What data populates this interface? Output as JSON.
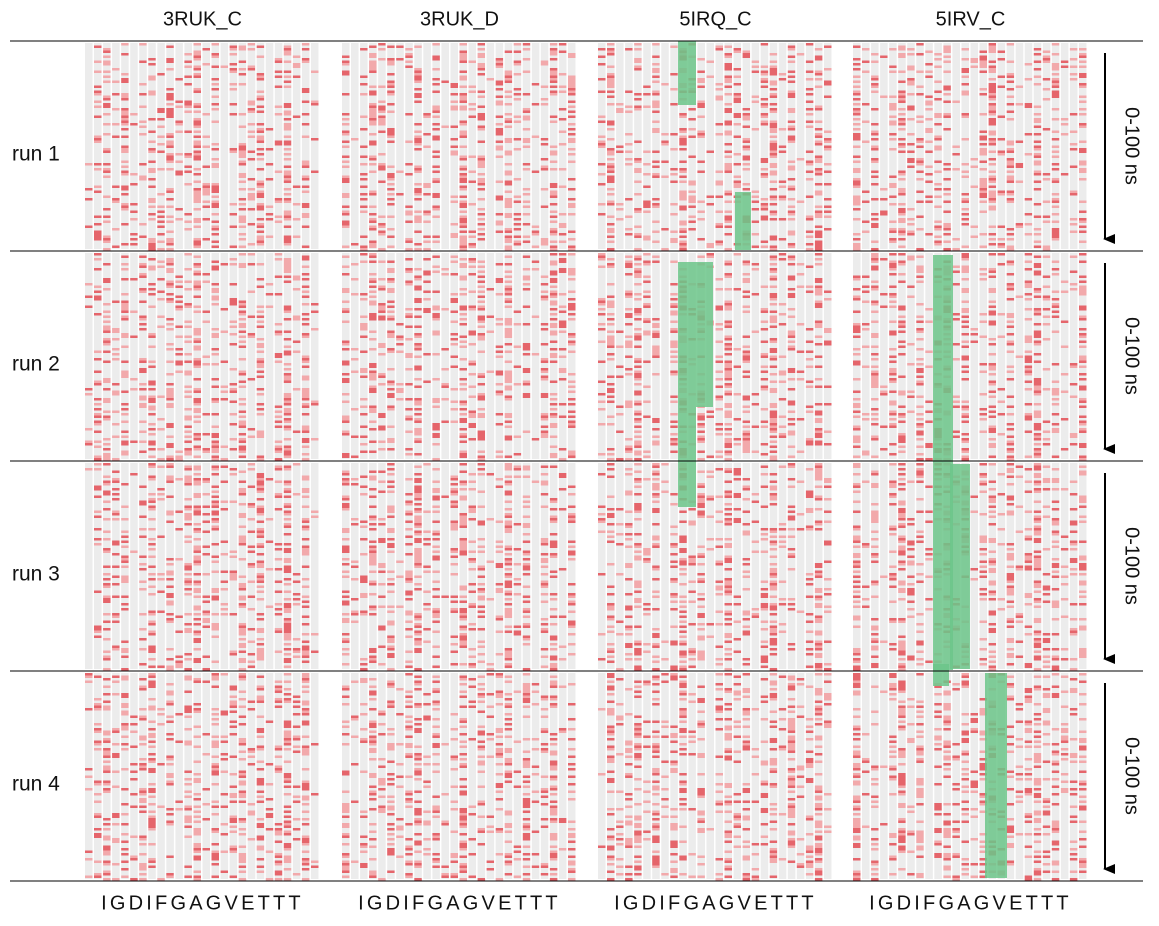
{
  "columns": [
    "3RUK_C",
    "3RUK_D",
    "5IRQ_C",
    "5IRV_C"
  ],
  "rows": [
    "run 1",
    "run 2",
    "run 3",
    "run 4"
  ],
  "time_labels": [
    "0-100 ns",
    "0-100 ns",
    "0-100 ns",
    "0-100 ns"
  ],
  "sequences": [
    "IGDIFGAGVETTT",
    "IGDIFGAGVETTT",
    "IGDIFGAGVETTT",
    "IGDIFGAGVETTT"
  ]
}
